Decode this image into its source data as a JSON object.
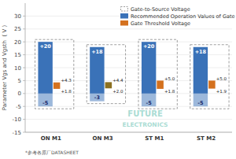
{
  "chart_data": {
    "type": "bar",
    "categories": [
      "ON M1",
      "ON M3",
      "ST M1",
      "ST M2"
    ],
    "series": [
      {
        "name": "Gate-to-Source Voltage",
        "type": "range",
        "line_style": "dashed",
        "color": "#777777",
        "values": [
          20,
          18,
          20,
          18
        ],
        "low": [
          -5,
          -3,
          -5,
          -5
        ]
      },
      {
        "name": "Recommended Operation Values of Gate",
        "type": "range",
        "color": "#3A72B8",
        "values": [
          20,
          18,
          20,
          18
        ],
        "low": [
          -5,
          -3,
          -5,
          -5
        ],
        "value_labels": [
          "+20",
          "+18",
          "+20",
          "+18"
        ],
        "low_labels": [
          "-5",
          "-3",
          "-5",
          "-5"
        ]
      },
      {
        "name": "Gate Threshold Voltage",
        "type": "range",
        "color": "#D4711E",
        "colors": [
          "#D4711E",
          "#8B7020",
          "#D4711E",
          "#D4711E"
        ],
        "values": [
          4.3,
          4.4,
          5.0,
          5.0
        ],
        "low": [
          1.8,
          2.0,
          1.8,
          1.9
        ],
        "value_labels": [
          "+4.3",
          "+4.4",
          "+5.0",
          "+5.0"
        ],
        "low_labels": [
          "+1.8",
          "+2.0",
          "+1.8",
          "+1.9"
        ]
      }
    ],
    "ylabel": "Parameter Vgs and Vgsth  ( V )",
    "ylim": [
      -15,
      35
    ],
    "yticks": [
      -15,
      -10,
      -5,
      0,
      5,
      10,
      15,
      20,
      25,
      30
    ],
    "grid": true,
    "legend": "upper right",
    "data_labels": true,
    "watermark": [
      "FUTURE",
      "ELECTRONICS"
    ],
    "footnote": "*参考各原厂DATASHEET"
  }
}
